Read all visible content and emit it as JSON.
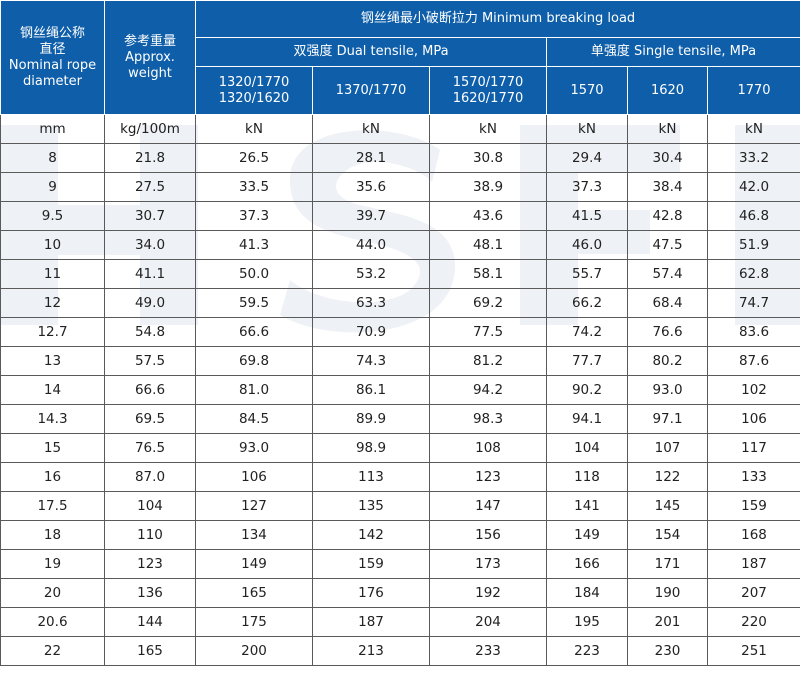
{
  "headers": {
    "diameter": "钢丝绳公称\n直径\nNominal rope\ndiameter",
    "weight": "参考重量\nApprox.\nweight",
    "breaking": "钢丝绳最小破断拉力 Minimum breaking load",
    "dual": "双强度 Dual tensile, MPa",
    "single": "单强度 Single tensile, MPa",
    "grades": [
      "1320/1770\n1320/1620",
      "1370/1770",
      "1570/1770\n1620/1770",
      "1570",
      "1620",
      "1770"
    ]
  },
  "units": [
    "mm",
    "kg/100m",
    "kN",
    "kN",
    "kN",
    "kN",
    "kN",
    "kN"
  ],
  "rows": [
    [
      "8",
      "21.8",
      "26.5",
      "28.1",
      "30.8",
      "29.4",
      "30.4",
      "33.2"
    ],
    [
      "9",
      "27.5",
      "33.5",
      "35.6",
      "38.9",
      "37.3",
      "38.4",
      "42.0"
    ],
    [
      "9.5",
      "30.7",
      "37.3",
      "39.7",
      "43.6",
      "41.5",
      "42.8",
      "46.8"
    ],
    [
      "10",
      "34.0",
      "41.3",
      "44.0",
      "48.1",
      "46.0",
      "47.5",
      "51.9"
    ],
    [
      "11",
      "41.1",
      "50.0",
      "53.2",
      "58.1",
      "55.7",
      "57.4",
      "62.8"
    ],
    [
      "12",
      "49.0",
      "59.5",
      "63.3",
      "69.2",
      "66.2",
      "68.4",
      "74.7"
    ],
    [
      "12.7",
      "54.8",
      "66.6",
      "70.9",
      "77.5",
      "74.2",
      "76.6",
      "83.6"
    ],
    [
      "13",
      "57.5",
      "69.8",
      "74.3",
      "81.2",
      "77.7",
      "80.2",
      "87.6"
    ],
    [
      "14",
      "66.6",
      "81.0",
      "86.1",
      "94.2",
      "90.2",
      "93.0",
      "102"
    ],
    [
      "14.3",
      "69.5",
      "84.5",
      "89.9",
      "98.3",
      "94.1",
      "97.1",
      "106"
    ],
    [
      "15",
      "76.5",
      "93.0",
      "98.9",
      "108",
      "104",
      "107",
      "117"
    ],
    [
      "16",
      "87.0",
      "106",
      "113",
      "123",
      "118",
      "122",
      "133"
    ],
    [
      "17.5",
      "104",
      "127",
      "135",
      "147",
      "141",
      "145",
      "159"
    ],
    [
      "18",
      "110",
      "134",
      "142",
      "156",
      "149",
      "154",
      "168"
    ],
    [
      "19",
      "123",
      "149",
      "159",
      "173",
      "166",
      "171",
      "187"
    ],
    [
      "20",
      "136",
      "165",
      "176",
      "192",
      "184",
      "190",
      "207"
    ],
    [
      "20.6",
      "144",
      "175",
      "187",
      "204",
      "195",
      "201",
      "220"
    ],
    [
      "22",
      "165",
      "200",
      "213",
      "233",
      "223",
      "230",
      "251"
    ]
  ],
  "watermark": "HSF",
  "colors": {
    "header_bg": "#0e5ea9",
    "header_text": "#ffffff",
    "grid": "#5a5a5a",
    "watermark": "#eef1f5"
  }
}
